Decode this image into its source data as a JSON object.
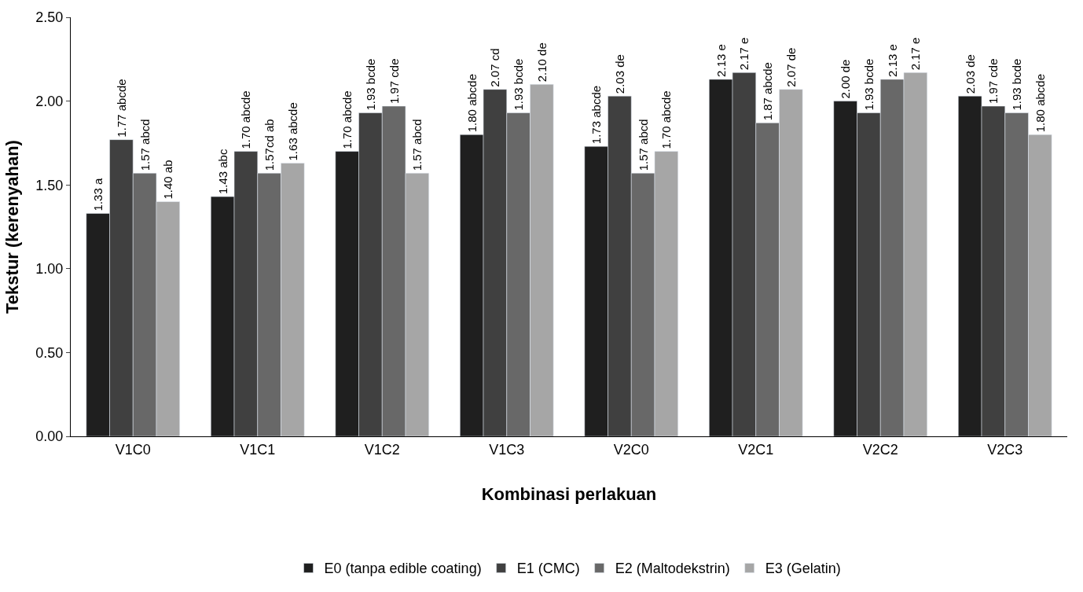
{
  "chart_data": {
    "type": "bar",
    "xlabel": "Kombinasi perlakuan",
    "ylabel": "Tekstur (kerenyahan)",
    "categories": [
      "V1C0",
      "V1C1",
      "V1C2",
      "V1C3",
      "V2C0",
      "V2C1",
      "V2C2",
      "V2C3"
    ],
    "series": [
      {
        "name": "E0 (tanpa edible coating)",
        "color": "#1f1f1f",
        "values": [
          1.33,
          1.43,
          1.7,
          1.8,
          1.73,
          2.13,
          2.0,
          2.03
        ],
        "value_labels": [
          "1.33 a",
          "1.43 abc",
          "1.70 abcde",
          "1.80 abcde",
          "1.73 abcde",
          "2.13 e",
          "2.00 de",
          "2.03 de"
        ]
      },
      {
        "name": "E1 (CMC)",
        "color": "#404040",
        "values": [
          1.77,
          1.7,
          1.93,
          2.07,
          2.03,
          2.17,
          1.93,
          1.97
        ],
        "value_labels": [
          "1.77 abcde",
          "1.70 abcde",
          "1.93 bcde",
          "2.07 cd",
          "2.03 de",
          "2.17 e",
          "1.93 bcde",
          "1.97 cde"
        ]
      },
      {
        "name": "E2 (Maltodekstrin)",
        "color": "#686868",
        "values": [
          1.57,
          1.57,
          1.97,
          1.93,
          1.57,
          1.87,
          2.13,
          1.93
        ],
        "value_labels": [
          "1.57 abcd",
          "1.57cd ab",
          "1.97 cde",
          "1.93 bcde",
          "1.57 abcd",
          "1.87 abcde",
          "2.13 e",
          "1.93 bcde"
        ]
      },
      {
        "name": "E3 (Gelatin)",
        "color": "#a6a6a6",
        "values": [
          1.4,
          1.63,
          1.57,
          2.1,
          1.7,
          2.07,
          2.17,
          1.8
        ],
        "value_labels": [
          "1.40 ab",
          "1.63 abcde",
          "1.57 abcd",
          "2.10 de",
          "1.70 abcde",
          "2.07 de",
          "2.17 e",
          "1.80 abcde"
        ]
      }
    ],
    "ylim": [
      0,
      2.5
    ],
    "yticks": [
      {
        "value": 0,
        "label": "0.00"
      },
      {
        "value": 0.5,
        "label": "0.50"
      },
      {
        "value": 1,
        "label": "1.00"
      },
      {
        "value": 1.5,
        "label": "1.50"
      },
      {
        "value": 2,
        "label": "2.00"
      },
      {
        "value": 2.5,
        "label": "2.50"
      }
    ],
    "legend": "bottom"
  }
}
